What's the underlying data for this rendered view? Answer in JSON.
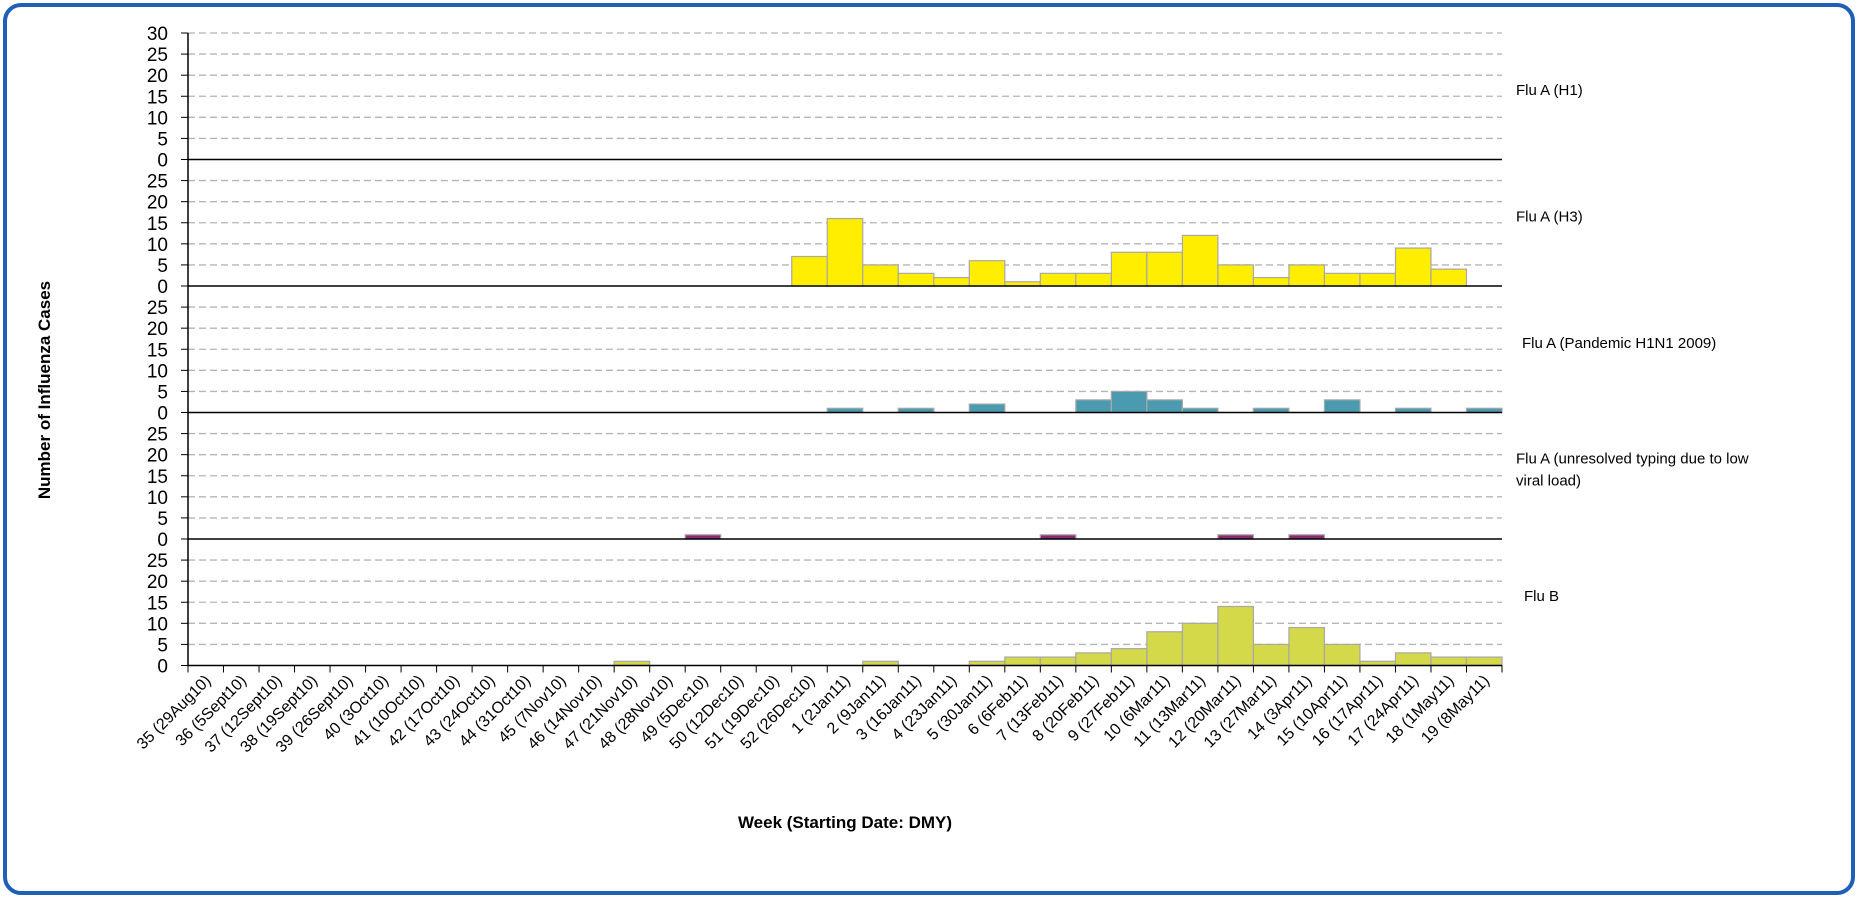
{
  "chart_data": {
    "type": "bar",
    "xlabel": "Week (Starting Date: DMY)",
    "ylabel": "Number of Influenza Cases",
    "ylim": [
      0,
      30
    ],
    "yticks": [
      0,
      5,
      10,
      15,
      20,
      25,
      30
    ],
    "grid": true,
    "categories": [
      "35 (29Aug10)",
      "36 (5Sept10)",
      "37 (12Sept10)",
      "38 (19Sept10)",
      "39 (26Sept10)",
      "40 (3Oct10)",
      "41 (10Oct10)",
      "42 (17Oct10)",
      "43 (24Oct10)",
      "44 (31Oct10)",
      "45 (7Nov10)",
      "46 (14Nov10)",
      "47 (21Nov10)",
      "48 (28Nov10)",
      "49 (5Dec10)",
      "50 (12Dec10)",
      "51 (19Dec10)",
      "52 (26Dec10)",
      "1 (2Jan11)",
      "2 (9Jan11)",
      "3 (16Jan11)",
      "4 (23Jan11)",
      "5 (30Jan11)",
      "6 (6Feb11)",
      "7 (13Feb11)",
      "8 (20Feb11)",
      "9 (27Feb11)",
      "10 (6Mar11)",
      "11 (13Mar11)",
      "12 (20Mar11)",
      "13 (27Mar11)",
      "14 (3Apr11)",
      "15 (10Apr11)",
      "16 (17Apr11)",
      "17 (24Apr11)",
      "18 (1May11)",
      "19 (8May11)"
    ],
    "series": [
      {
        "name": "Flu A (H1)",
        "color": "#ffff00",
        "values": [
          0,
          0,
          0,
          0,
          0,
          0,
          0,
          0,
          0,
          0,
          0,
          0,
          0,
          0,
          0,
          0,
          0,
          0,
          0,
          0,
          0,
          0,
          0,
          0,
          0,
          0,
          0,
          0,
          0,
          0,
          0,
          0,
          0,
          0,
          0,
          0,
          0
        ]
      },
      {
        "name": "Flu A (H3)",
        "color": "#ffee00",
        "values": [
          0,
          0,
          0,
          0,
          0,
          0,
          0,
          0,
          0,
          0,
          0,
          0,
          0,
          0,
          0,
          0,
          0,
          7,
          16,
          5,
          3,
          2,
          6,
          1,
          3,
          3,
          8,
          8,
          12,
          5,
          2,
          5,
          3,
          3,
          9,
          4,
          0
        ]
      },
      {
        "name": "Flu A (Pandemic H1N1 2009)",
        "color": "#4a9ab0",
        "values": [
          0,
          0,
          0,
          0,
          0,
          0,
          0,
          0,
          0,
          0,
          0,
          0,
          0,
          0,
          0,
          0,
          0,
          0,
          1,
          0,
          1,
          0,
          2,
          0,
          0,
          3,
          5,
          3,
          1,
          0,
          1,
          0,
          3,
          0,
          1,
          0,
          1
        ]
      },
      {
        "name": "Flu A (unresolved typing due to low viral load)",
        "color": "#8b2a6e",
        "values": [
          0,
          0,
          0,
          0,
          0,
          0,
          0,
          0,
          0,
          0,
          0,
          0,
          0,
          0,
          1,
          0,
          0,
          0,
          0,
          0,
          0,
          0,
          0,
          0,
          1,
          0,
          0,
          0,
          0,
          1,
          0,
          1,
          0,
          0,
          0,
          0,
          0
        ]
      },
      {
        "name": "Flu B",
        "color": "#d4d94a",
        "values": [
          0,
          0,
          0,
          0,
          0,
          0,
          0,
          0,
          0,
          0,
          0,
          0,
          1,
          0,
          0,
          0,
          0,
          0,
          0,
          1,
          0,
          0,
          1,
          2,
          2,
          3,
          4,
          8,
          10,
          14,
          5,
          9,
          5,
          1,
          3,
          2,
          2
        ]
      }
    ]
  }
}
